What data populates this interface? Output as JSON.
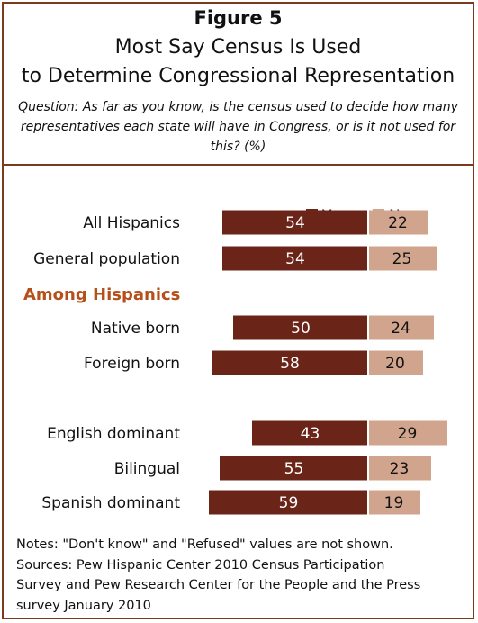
{
  "header": {
    "figure_label": "Figure 5",
    "title_line1": "Most Say Census Is Used",
    "title_line2": "to Determine Congressional Representation",
    "question": "Question: As far as you know, is the census used to decide how many representatives each state will have in Congress, or is it not used for this? (%)"
  },
  "colors": {
    "yes": "#6b2418",
    "no": "#d1a48e",
    "border": "#7a3b1e",
    "section": "#b5501a"
  },
  "chart_data": {
    "type": "bar",
    "orientation": "horizontal-diverging",
    "series": [
      {
        "name": "Yes",
        "color": "#6b2418",
        "values": [
          54,
          54,
          50,
          58,
          43,
          55,
          59
        ]
      },
      {
        "name": "No",
        "color": "#d1a48e",
        "values": [
          22,
          25,
          24,
          20,
          29,
          23,
          19
        ]
      }
    ],
    "categories": [
      "All Hispanics",
      "General population",
      "Native born",
      "Foreign born",
      "English dominant",
      "Bilingual",
      "Spanish dominant"
    ],
    "section_heading": "Among Hispanics",
    "legend_position": "top-right",
    "grid": false
  },
  "notes": {
    "line1": "Notes: \"Don't know\" and \"Refused\" values are not shown.",
    "line2": "Sources: Pew Hispanic Center 2010 Census Participation",
    "line3": "Survey and Pew Research Center for the People and the Press",
    "line4": "survey January 2010"
  }
}
